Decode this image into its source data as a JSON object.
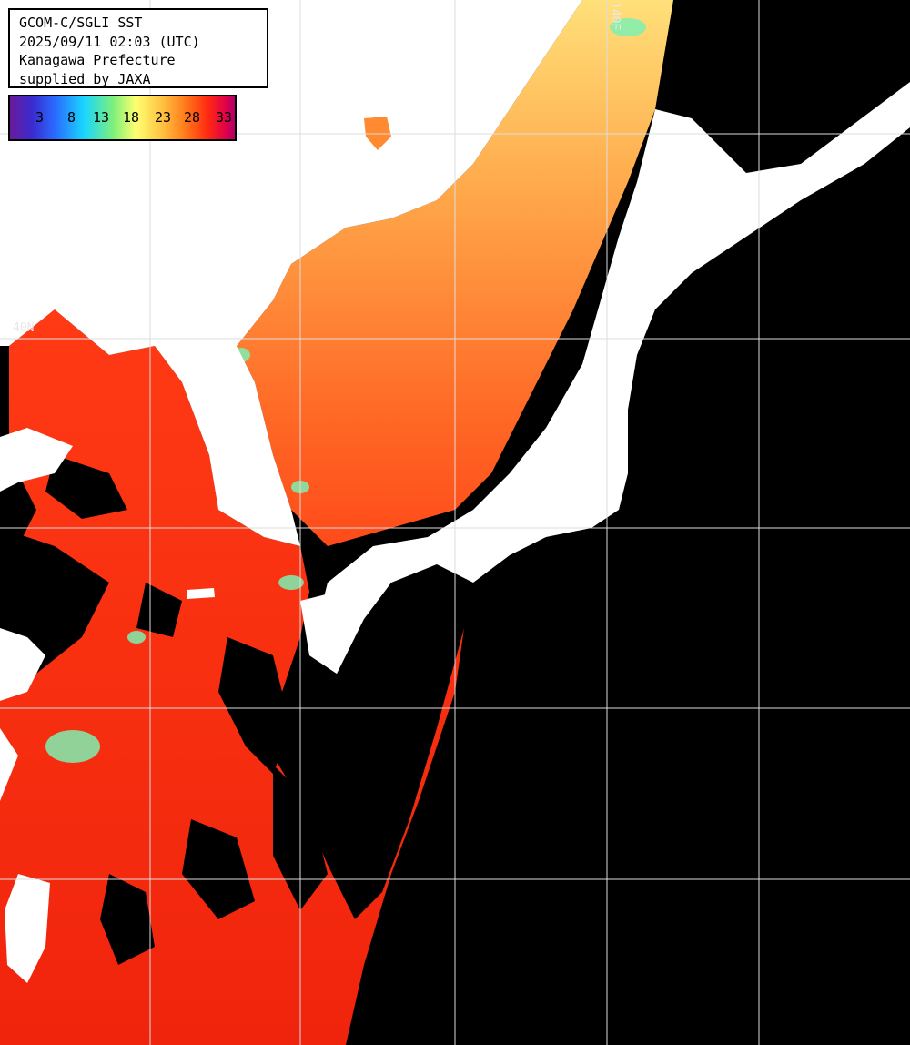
{
  "map": {
    "lat_labels": [
      "40N"
    ],
    "lon_labels": [
      "140E"
    ]
  },
  "info": {
    "line1": "GCOM-C/SGLI SST",
    "line2": "2025/09/11 02:03 (UTC)",
    "line3": "Kanagawa Prefecture",
    "line4": "supplied by JAXA"
  },
  "colorbar": {
    "ticks": [
      "3",
      "8",
      "13",
      "18",
      "23",
      "28",
      "33"
    ]
  },
  "colors": {
    "land": "#ffffff",
    "no_data": "#000000",
    "warm": "#ff2a10",
    "mild": "#ff8a30",
    "cool": "#ffd870",
    "cold_patch": "#7ef0b0"
  }
}
